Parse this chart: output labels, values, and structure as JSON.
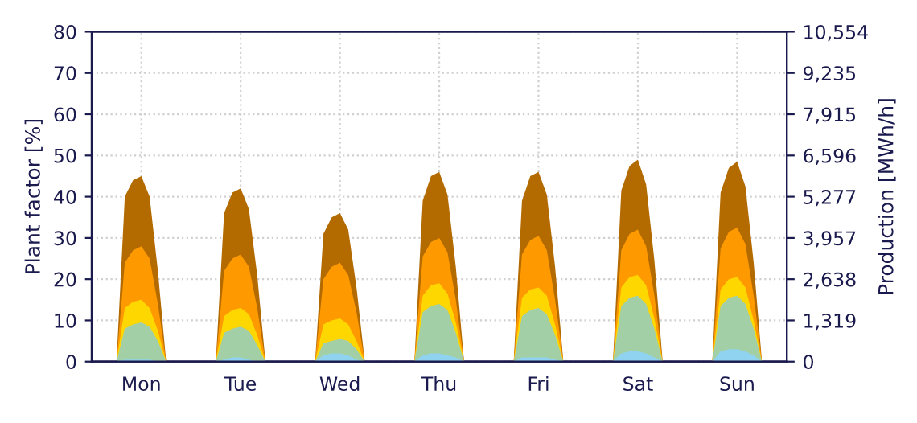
{
  "chart_data": {
    "type": "area",
    "ylabel": "Plant factor [%]",
    "y2label": "Production [MWh/h]",
    "categories": [
      null,
      null,
      null,
      null,
      null,
      null,
      "Mon",
      null,
      null,
      null,
      null,
      null,
      null,
      null,
      null,
      null,
      null,
      null,
      "Tue",
      null,
      null,
      null,
      null,
      null,
      null,
      null,
      null,
      null,
      null,
      null,
      "Wed",
      null,
      null,
      null,
      null,
      null,
      null,
      null,
      null,
      null,
      null,
      null,
      "Thu",
      null,
      null,
      null,
      null,
      null,
      null,
      null,
      null,
      null,
      null,
      null,
      "Fri",
      null,
      null,
      null,
      null,
      null,
      null,
      null,
      null,
      null,
      null,
      null,
      "Sat",
      null,
      null,
      null,
      null,
      null,
      null,
      null,
      null,
      null,
      null,
      null,
      "Sun",
      null,
      null,
      null,
      null,
      null,
      null
    ],
    "series": [
      {
        "color": "#b36b00",
        "values": [
          0,
          0,
          0,
          0,
          40,
          44,
          45,
          40,
          22,
          0,
          0,
          0,
          0,
          0,
          0,
          0,
          36,
          41,
          42,
          37,
          21,
          0,
          0,
          0,
          0,
          0,
          0,
          0,
          31,
          35,
          36,
          32,
          18,
          0,
          0,
          0,
          0,
          0,
          0,
          0,
          39,
          45,
          46,
          40.5,
          23,
          0,
          0,
          0,
          0,
          0,
          0,
          0,
          39,
          45,
          46,
          40.5,
          23,
          0,
          0,
          0,
          0,
          0,
          0,
          0,
          41.5,
          47.5,
          49,
          43,
          24.5,
          0,
          0,
          0,
          0,
          0,
          0,
          0,
          41,
          47,
          48.5,
          42.5,
          24,
          0,
          0,
          0,
          0
        ]
      },
      {
        "color": "#ff9900",
        "values": [
          0,
          0,
          0,
          0,
          24,
          27,
          28,
          25,
          14,
          0,
          0,
          0,
          0,
          0,
          0,
          0,
          22,
          25,
          26,
          23,
          13,
          0,
          0,
          0,
          0,
          0,
          0,
          0,
          20,
          23,
          24,
          21,
          12,
          0,
          0,
          0,
          0,
          0,
          0,
          0,
          25.5,
          29,
          30,
          26.5,
          15,
          0,
          0,
          0,
          0,
          0,
          0,
          0,
          26,
          29.5,
          30.5,
          27,
          15,
          0,
          0,
          0,
          0,
          0,
          0,
          0,
          27,
          31,
          32,
          28,
          16,
          0,
          0,
          0,
          0,
          0,
          0,
          0,
          27.5,
          31.5,
          32.5,
          28.5,
          16,
          0,
          0,
          0,
          0
        ]
      },
      {
        "color": "#ffd700",
        "values": [
          0,
          0,
          0,
          0,
          13,
          14.5,
          15,
          13,
          7.5,
          0,
          0,
          0,
          0,
          0,
          0,
          0,
          11,
          12.5,
          13,
          11.5,
          6.5,
          0,
          0,
          0,
          0,
          0,
          0,
          0,
          9,
          10,
          10.5,
          9,
          5,
          0,
          0,
          0,
          0,
          0,
          0,
          0,
          16,
          18.5,
          19,
          16.5,
          9.5,
          0,
          0,
          0,
          0,
          0,
          0,
          0,
          15.5,
          17.5,
          18,
          16,
          9,
          0,
          0,
          0,
          0,
          0,
          0,
          0,
          18,
          20.5,
          21,
          18.5,
          10.5,
          0,
          0,
          0,
          0,
          0,
          0,
          0,
          17.5,
          20,
          20.5,
          18,
          10,
          0,
          0,
          0,
          0
        ]
      },
      {
        "color": "#a2cfa5",
        "values": [
          0,
          0,
          0,
          0,
          8,
          9,
          9.5,
          8.5,
          5,
          0,
          0,
          0,
          0,
          0,
          0,
          0,
          7,
          8,
          8.5,
          7.5,
          4,
          0,
          0,
          0,
          0,
          0,
          0,
          0,
          4.5,
          5,
          5.5,
          5,
          3,
          0,
          0,
          0,
          0,
          0,
          0,
          0,
          12,
          13.5,
          14,
          12.5,
          7,
          0,
          0,
          0,
          0,
          0,
          0,
          0,
          11,
          12.5,
          13,
          11.5,
          6.5,
          0,
          0,
          0,
          0,
          0,
          0,
          0,
          13.5,
          15.5,
          16,
          14,
          8,
          0,
          0,
          0,
          0,
          0,
          0,
          0,
          13.5,
          15.5,
          16,
          14,
          8,
          0,
          0,
          0,
          0
        ]
      },
      {
        "color": "#8fd3f0",
        "values": [
          0,
          0,
          0,
          0,
          0.5,
          0.5,
          0.5,
          0.5,
          0,
          0,
          0,
          0,
          0,
          0,
          0,
          0,
          0.5,
          1,
          1,
          0.5,
          0,
          0,
          0,
          0,
          0,
          0,
          0,
          0,
          1.5,
          2,
          2,
          1.5,
          0.5,
          0,
          0,
          0,
          0,
          0,
          0,
          0,
          1.5,
          2,
          2,
          1.5,
          1,
          0,
          0,
          0,
          0,
          0,
          0,
          0,
          1,
          1,
          1,
          1,
          0.5,
          0,
          0,
          0,
          0,
          0,
          0,
          0,
          2,
          2.5,
          2.5,
          2,
          1,
          0,
          0,
          0,
          0,
          0,
          0,
          0,
          2.5,
          3,
          3,
          2.5,
          1.5,
          0,
          0,
          0,
          0
        ]
      }
    ],
    "ylim": [
      0,
      80
    ],
    "yticks": [
      0,
      10,
      20,
      30,
      40,
      50,
      60,
      70,
      80
    ],
    "y2lim": [
      0,
      10554
    ],
    "y2ticks": [
      0,
      {
        "value": 1319,
        "label": "1,319"
      },
      {
        "value": 2638,
        "label": "2,638"
      },
      {
        "value": 3957,
        "label": "3,957"
      },
      {
        "value": 5277,
        "label": "5,277"
      },
      {
        "value": 6596,
        "label": "6,596"
      },
      {
        "value": 7915,
        "label": "7,915"
      },
      {
        "value": 9235,
        "label": "9,235"
      },
      {
        "value": 10554,
        "label": "10,554"
      }
    ],
    "grid": true,
    "legend": false
  }
}
